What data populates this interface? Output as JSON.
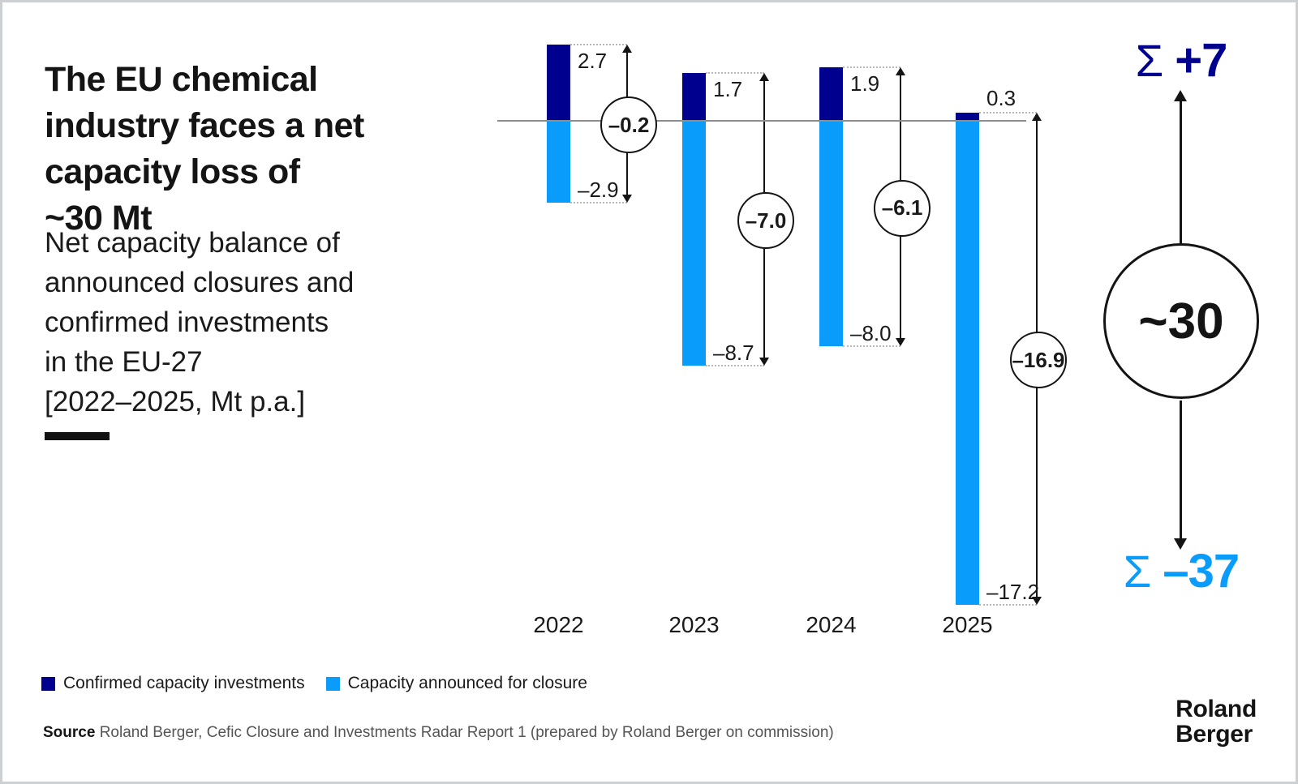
{
  "header": {
    "title_lines": [
      "The EU chemical",
      "industry faces a net",
      "capacity loss of",
      "~30 Mt"
    ],
    "subtitle_lines": [
      "Net capacity balance of",
      "announced closures and",
      "confirmed investments",
      "in the EU-27",
      "[2022–2025, Mt p.a.]"
    ]
  },
  "chart_data": {
    "type": "bar",
    "title": "Net capacity balance of announced closures and confirmed investments in the EU-27",
    "unit": "Mt p.a.",
    "categories": [
      "2022",
      "2023",
      "2024",
      "2025"
    ],
    "series": [
      {
        "name": "Confirmed capacity investments",
        "color": "#00008F",
        "values": [
          2.7,
          1.7,
          1.9,
          0.3
        ]
      },
      {
        "name": "Capacity announced for closure",
        "color": "#0A9CFA",
        "values": [
          -2.9,
          -8.7,
          -8.0,
          -17.2
        ]
      }
    ],
    "net_values": [
      -0.2,
      -7.0,
      -6.1,
      -16.9
    ],
    "ylim": [
      -18,
      3
    ],
    "grid": false,
    "legend_position": "bottom",
    "axis_color": "#8D8D8D"
  },
  "summary": {
    "sigma": "Σ",
    "sum_positive": "+7",
    "sum_negative": "–37",
    "net_total": "~30",
    "positive_color": "#00008F",
    "negative_color": "#0A9CFA"
  },
  "footer": {
    "source_label": "Source",
    "source_text": "Roland Berger, Cefic Closure and Investments Radar Report 1 (prepared by Roland Berger on commission)",
    "logo_lines": [
      "Roland",
      "Berger"
    ]
  }
}
